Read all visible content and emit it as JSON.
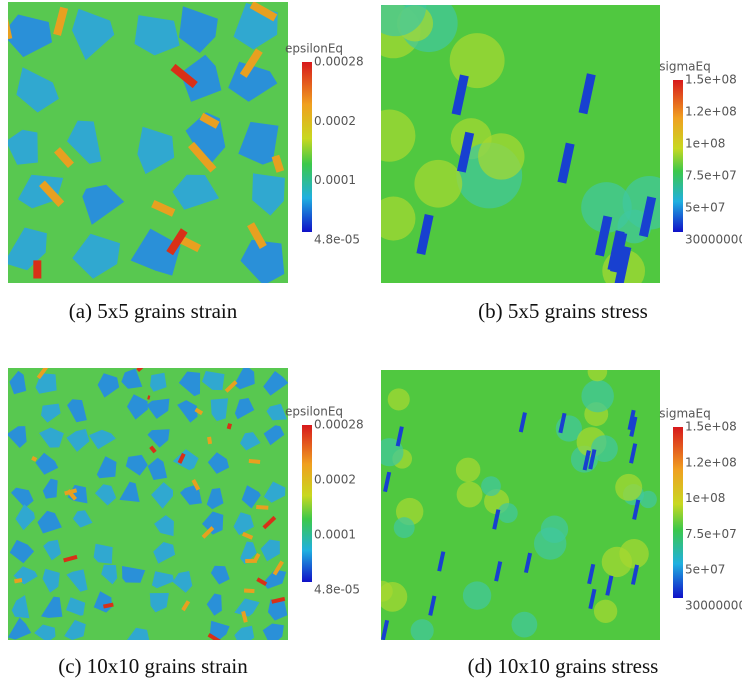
{
  "panels": [
    {
      "caption": "(a) 5x5 grains strain",
      "colorbar": {
        "title": "epsilonEq",
        "labels": [
          "0.00028",
          "0.0002",
          "0.0001",
          "4.8e-05"
        ]
      }
    },
    {
      "caption": "(b) 5x5 grains stress",
      "colorbar": {
        "title": "sigmaEq",
        "labels": [
          "1.5e+08",
          "1.2e+08",
          "1e+08",
          "7.5e+07",
          "5e+07",
          "30000000"
        ]
      }
    },
    {
      "caption": "(c) 10x10 grains strain",
      "colorbar": {
        "title": "epsilonEq",
        "labels": [
          "0.00028",
          "0.0002",
          "0.0001",
          "4.8e-05"
        ]
      }
    },
    {
      "caption": "(d) 10x10 grains stress",
      "colorbar": {
        "title": "sigmaEq",
        "labels": [
          "1.5e+08",
          "1.2e+08",
          "1e+08",
          "7.5e+07",
          "5e+07",
          "30000000"
        ]
      }
    }
  ]
}
